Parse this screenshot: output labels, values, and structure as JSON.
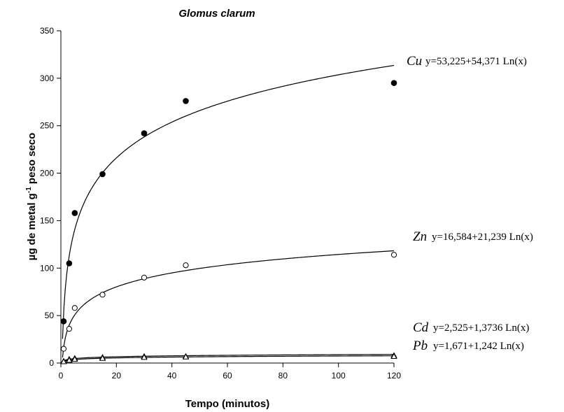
{
  "chart_data": {
    "type": "scatter",
    "title": "Glomus clarum",
    "xlabel": "Tempo (minutos)",
    "ylabel_main": "µg de metal g",
    "ylabel_sup": "-1",
    "ylabel_tail": " peso seco",
    "xlim": [
      0,
      120
    ],
    "ylim": [
      0,
      350
    ],
    "xticks": [
      0,
      20,
      40,
      60,
      80,
      100,
      120
    ],
    "yticks": [
      0,
      50,
      100,
      150,
      200,
      250,
      300,
      350
    ],
    "grid": false,
    "series": [
      {
        "name": "Cu",
        "equation": "y=53,225+54,371 Ln(x)",
        "coef_a": 53.225,
        "coef_b": 54.371,
        "marker": "filled-circle",
        "x": [
          1,
          3,
          5,
          15,
          30,
          45,
          120
        ],
        "y": [
          44,
          105,
          158,
          199,
          242,
          276,
          295
        ]
      },
      {
        "name": "Zn",
        "equation": "y=16,584+21,239 Ln(x)",
        "coef_a": 16.584,
        "coef_b": 21.239,
        "marker": "open-circle",
        "x": [
          1,
          3,
          5,
          15,
          30,
          45,
          120
        ],
        "y": [
          15,
          36,
          58,
          72,
          90,
          103,
          114
        ]
      },
      {
        "name": "Cd",
        "equation": "y=2,525+1,3736 Ln(x)",
        "coef_a": 2.525,
        "coef_b": 1.3736,
        "marker": "open-triangle",
        "x": [
          1,
          3,
          5,
          15,
          30,
          45,
          120
        ],
        "y": [
          2,
          4,
          5,
          6,
          7,
          7,
          8
        ]
      },
      {
        "name": "Pb",
        "equation": "y=1,671+1,242 Ln(x)",
        "coef_a": 1.671,
        "coef_b": 1.242,
        "marker": "open-triangle",
        "x": [
          1,
          3,
          5,
          15,
          30,
          45,
          120
        ],
        "y": [
          1.5,
          3,
          4,
          5,
          6,
          6.5,
          7
        ]
      }
    ]
  }
}
